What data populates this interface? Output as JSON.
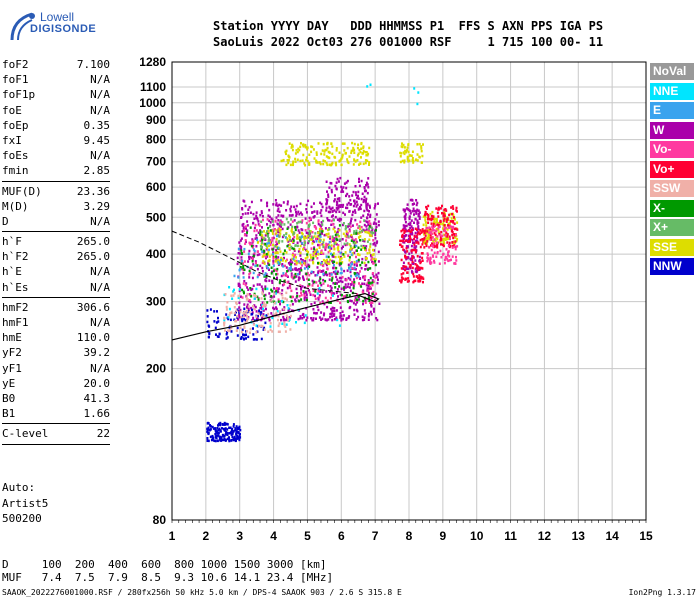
{
  "logo": {
    "line1": "Lowell",
    "line2": "DIGISONDE"
  },
  "header": {
    "labels": "Station YYYY DAY   DDD HHMMSS P1  FFS S AXN PPS IGA PS",
    "values": "SaoLuis 2022 Oct03 276 001000 RSF     1 715 100 00- 11"
  },
  "params": [
    {
      "name": "foF2",
      "value": "7.100"
    },
    {
      "name": "foF1",
      "value": "N/A"
    },
    {
      "name": "foF1p",
      "value": "N/A"
    },
    {
      "name": "foE",
      "value": "N/A"
    },
    {
      "name": "foEp",
      "value": "0.35"
    },
    {
      "name": "fxI",
      "value": "9.45"
    },
    {
      "name": "foEs",
      "value": "N/A"
    },
    {
      "name": "fmin",
      "value": "2.85"
    },
    {
      "sep": true
    },
    {
      "name": "MUF(D)",
      "value": "23.36"
    },
    {
      "name": "M(D)",
      "value": "3.29"
    },
    {
      "name": "D",
      "value": "N/A"
    },
    {
      "sep": true
    },
    {
      "name": "h`F",
      "value": "265.0"
    },
    {
      "name": "h`F2",
      "value": "265.0"
    },
    {
      "name": "h`E",
      "value": "N/A"
    },
    {
      "name": "h`Es",
      "value": "N/A"
    },
    {
      "sep": true
    },
    {
      "name": "hmF2",
      "value": "306.6"
    },
    {
      "name": "hmF1",
      "value": "N/A"
    },
    {
      "name": "hmE",
      "value": "110.0"
    },
    {
      "name": "yF2",
      "value": "39.2"
    },
    {
      "name": "yF1",
      "value": "N/A"
    },
    {
      "name": "yE",
      "value": "20.0"
    },
    {
      "name": "B0",
      "value": "41.3"
    },
    {
      "name": "B1",
      "value": "1.66"
    },
    {
      "sep": true
    },
    {
      "name": "C-level",
      "value": "22"
    },
    {
      "sep": true
    }
  ],
  "auto": {
    "line1": "Auto:",
    "line2": "Artist5",
    "line3": "500200"
  },
  "legend": [
    {
      "label": "NoVal",
      "color": "#999999"
    },
    {
      "label": "NNE",
      "color": "#00e5ff"
    },
    {
      "label": "E",
      "color": "#3aa3ee"
    },
    {
      "label": "W",
      "color": "#aa00aa"
    },
    {
      "label": "Vo-",
      "color": "#ff3aa0"
    },
    {
      "label": "Vo+",
      "color": "#ff0033"
    },
    {
      "label": "SSW",
      "color": "#f0b0a8"
    },
    {
      "label": "X-",
      "color": "#009900"
    },
    {
      "label": "X+",
      "color": "#66bb66"
    },
    {
      "label": "SSE",
      "color": "#dddd00"
    },
    {
      "label": "NNW",
      "color": "#0000cc"
    }
  ],
  "muf_table": {
    "d_row": "D     100  200  400  600  800 1000 1500 3000 [km]",
    "muf_row": "MUF   7.4  7.5  7.9  8.5  9.3 10.6 14.1 23.4 [MHz]"
  },
  "footer": "SAAOK_2022276001000.RSF / 280fx256h 50 kHz 5.0 km / DPS-4 SAAOK 903 / 2.6 S 315.8 E",
  "version": "Ion2Png 1.3.17",
  "chart_data": {
    "type": "scatter",
    "xlim": [
      1,
      15
    ],
    "ylim": [
      80,
      1280
    ],
    "xticks": [
      "1",
      "2",
      "3",
      "4",
      "5",
      "6",
      "7",
      "8",
      "9",
      "10",
      "11",
      "12",
      "13",
      "14",
      "15"
    ],
    "yticks": [
      {
        "v": 80,
        "label": "80"
      },
      {
        "v": 200,
        "label": "200"
      },
      {
        "v": 300,
        "label": "300"
      },
      {
        "v": 400,
        "label": "400"
      },
      {
        "v": 500,
        "label": "500"
      },
      {
        "v": 600,
        "label": "600"
      },
      {
        "v": 700,
        "label": "700"
      },
      {
        "v": 800,
        "label": "800"
      },
      {
        "v": 900,
        "label": "900"
      },
      {
        "v": 1000,
        "label": "1000"
      },
      {
        "v": 1100,
        "label": "1100"
      },
      {
        "v": 1280,
        "label": "1280"
      }
    ],
    "grid": true,
    "y_scale": "log",
    "profile_solid": [
      [
        1.0,
        238
      ],
      [
        2.0,
        250
      ],
      [
        3.0,
        260
      ],
      [
        4.0,
        275
      ],
      [
        5.0,
        290
      ],
      [
        6.0,
        305
      ],
      [
        6.7,
        315
      ],
      [
        7.1,
        305
      ],
      [
        7.0,
        300
      ],
      [
        6.5,
        312
      ]
    ],
    "profile_dashed": [
      [
        1.0,
        460
      ],
      [
        1.8,
        430
      ],
      [
        2.5,
        400
      ],
      [
        3.0,
        380
      ],
      [
        3.5,
        360
      ],
      [
        4.2,
        340
      ],
      [
        5.0,
        325
      ],
      [
        6.0,
        318
      ],
      [
        6.5,
        315
      ]
    ],
    "clusters": [
      {
        "color": "#aa00aa",
        "x": [
          2.9,
          7.1
        ],
        "y": [
          270,
          560
        ],
        "n": 900
      },
      {
        "color": "#aa00aa",
        "x": [
          7.8,
          8.3
        ],
        "y": [
          360,
          560
        ],
        "n": 160
      },
      {
        "color": "#ff0033",
        "x": [
          7.7,
          8.4
        ],
        "y": [
          340,
          470
        ],
        "n": 120
      },
      {
        "color": "#ff3aa0",
        "x": [
          3.0,
          7.0
        ],
        "y": [
          300,
          500
        ],
        "n": 260
      },
      {
        "color": "#dddd00",
        "x": [
          3.5,
          7.0
        ],
        "y": [
          380,
          470
        ],
        "n": 220
      },
      {
        "color": "#dddd00",
        "x": [
          4.2,
          6.8
        ],
        "y": [
          690,
          790
        ],
        "n": 170
      },
      {
        "color": "#dddd00",
        "x": [
          7.7,
          8.4
        ],
        "y": [
          700,
          790
        ],
        "n": 50
      },
      {
        "color": "#dddd00",
        "x": [
          8.4,
          9.4
        ],
        "y": [
          430,
          520
        ],
        "n": 120
      },
      {
        "color": "#009900",
        "x": [
          3.0,
          7.0
        ],
        "y": [
          300,
          480
        ],
        "n": 170
      },
      {
        "color": "#66bb66",
        "x": [
          3.5,
          7.0
        ],
        "y": [
          420,
          500
        ],
        "n": 90
      },
      {
        "color": "#ff0033",
        "x": [
          8.4,
          9.4
        ],
        "y": [
          420,
          540
        ],
        "n": 140
      },
      {
        "color": "#0000cc",
        "x": [
          2.0,
          3.0
        ],
        "y": [
          130,
          145
        ],
        "n": 150
      },
      {
        "color": "#0000cc",
        "x": [
          2.0,
          3.8
        ],
        "y": [
          240,
          290
        ],
        "n": 90
      },
      {
        "color": "#3aa3ee",
        "x": [
          2.8,
          6.5
        ],
        "y": [
          350,
          450
        ],
        "n": 80
      },
      {
        "color": "#00e5ff",
        "x": [
          2.5,
          6.0
        ],
        "y": [
          260,
          330
        ],
        "n": 40
      },
      {
        "color": "#f0b0a8",
        "x": [
          2.5,
          4.5
        ],
        "y": [
          250,
          320
        ],
        "n": 120
      },
      {
        "color": "#aa00aa",
        "x": [
          5.5,
          6.8
        ],
        "y": [
          520,
          640
        ],
        "n": 100
      },
      {
        "color": "#ff3aa0",
        "x": [
          8.5,
          9.4
        ],
        "y": [
          380,
          480
        ],
        "n": 90
      },
      {
        "color": "#00e5ff",
        "x": [
          6.5,
          8.5
        ],
        "y": [
          980,
          1130
        ],
        "n": 5
      }
    ]
  }
}
